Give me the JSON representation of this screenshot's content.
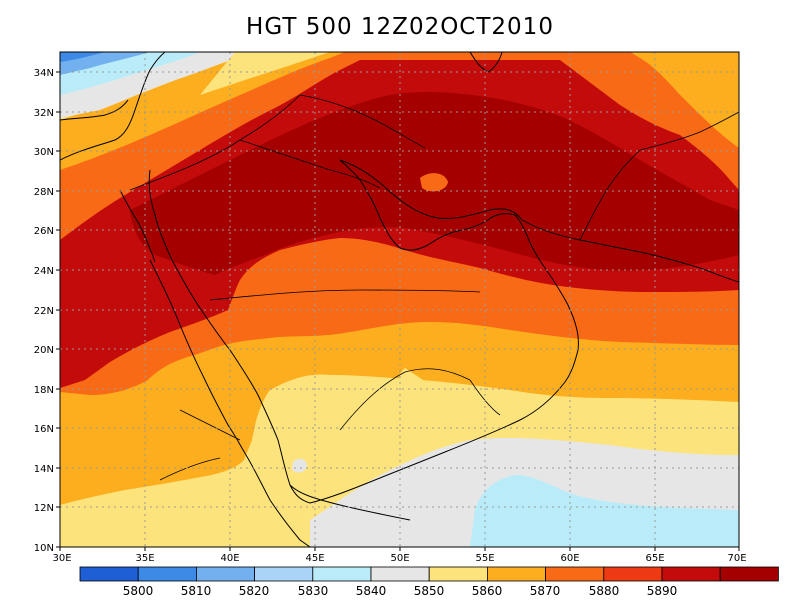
{
  "title": "HGT 500 12Z02OCT2010",
  "map": {
    "lon_range": [
      30,
      70
    ],
    "lat_range": [
      10,
      35
    ],
    "lat_ticks": [
      "10N",
      "12N",
      "14N",
      "16N",
      "18N",
      "20N",
      "22N",
      "24N",
      "26N",
      "28N",
      "30N",
      "32N",
      "34N"
    ],
    "lon_ticks": [
      "30E",
      "35E",
      "40E",
      "45E",
      "50E",
      "55E",
      "60E",
      "65E",
      "70E"
    ],
    "gridlines": "dotted"
  },
  "colorbar": {
    "labels": [
      "5800",
      "5810",
      "5820",
      "5830",
      "5840",
      "5850",
      "5860",
      "5870",
      "5880",
      "5890"
    ],
    "colors": [
      "#1e5fd6",
      "#3c8ae6",
      "#72b0f0",
      "#a9d4f7",
      "#b9ecf8",
      "#e6e6e6",
      "#fde37c",
      "#fcae1e",
      "#f96a16",
      "#ee3a12",
      "#c40b0b",
      "#a50000"
    ]
  }
}
